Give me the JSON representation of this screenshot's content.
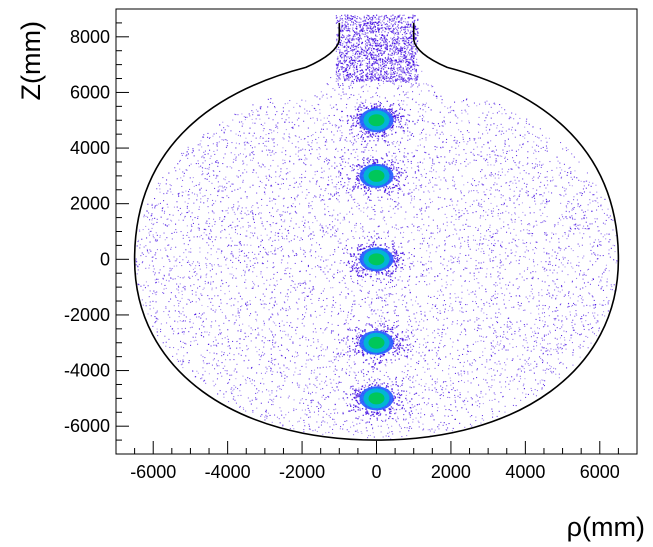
{
  "chart_data": {
    "type": "scatter",
    "xlabel": "ρ(mm)",
    "ylabel": "Z(mm)",
    "xlim": [
      -7000,
      7000
    ],
    "ylim": [
      -7000,
      9000
    ],
    "x_ticks": [
      -6000,
      -4000,
      -2000,
      0,
      2000,
      4000,
      6000
    ],
    "y_ticks": [
      -6000,
      -4000,
      -2000,
      0,
      2000,
      4000,
      6000,
      8000
    ],
    "x_tick_labels": [
      "-6000",
      "-4000",
      "-2000",
      "0",
      "2000",
      "4000",
      "6000"
    ],
    "y_tick_labels": [
      "-6000",
      "-4000",
      "-2000",
      "0",
      "2000",
      "4000",
      "6000",
      "8000"
    ],
    "grid": false,
    "cluster_centers": [
      {
        "rho": 0,
        "z": 5000
      },
      {
        "rho": 0,
        "z": 3000
      },
      {
        "rho": 0,
        "z": 0
      },
      {
        "rho": 0,
        "z": -3000
      },
      {
        "rho": 0,
        "z": -5000
      }
    ],
    "boundary": {
      "max_radius_mm": 6500,
      "bottom_z_mm": -6500,
      "neck_radius_mm": 1000,
      "neck_top_z_mm": 8500
    },
    "colors": {
      "points": "#3a00e0",
      "cluster_core": "#00c853",
      "cluster_mid": "#00b8d4",
      "cluster_outer": "#2962ff",
      "boundary": "#000000"
    }
  }
}
